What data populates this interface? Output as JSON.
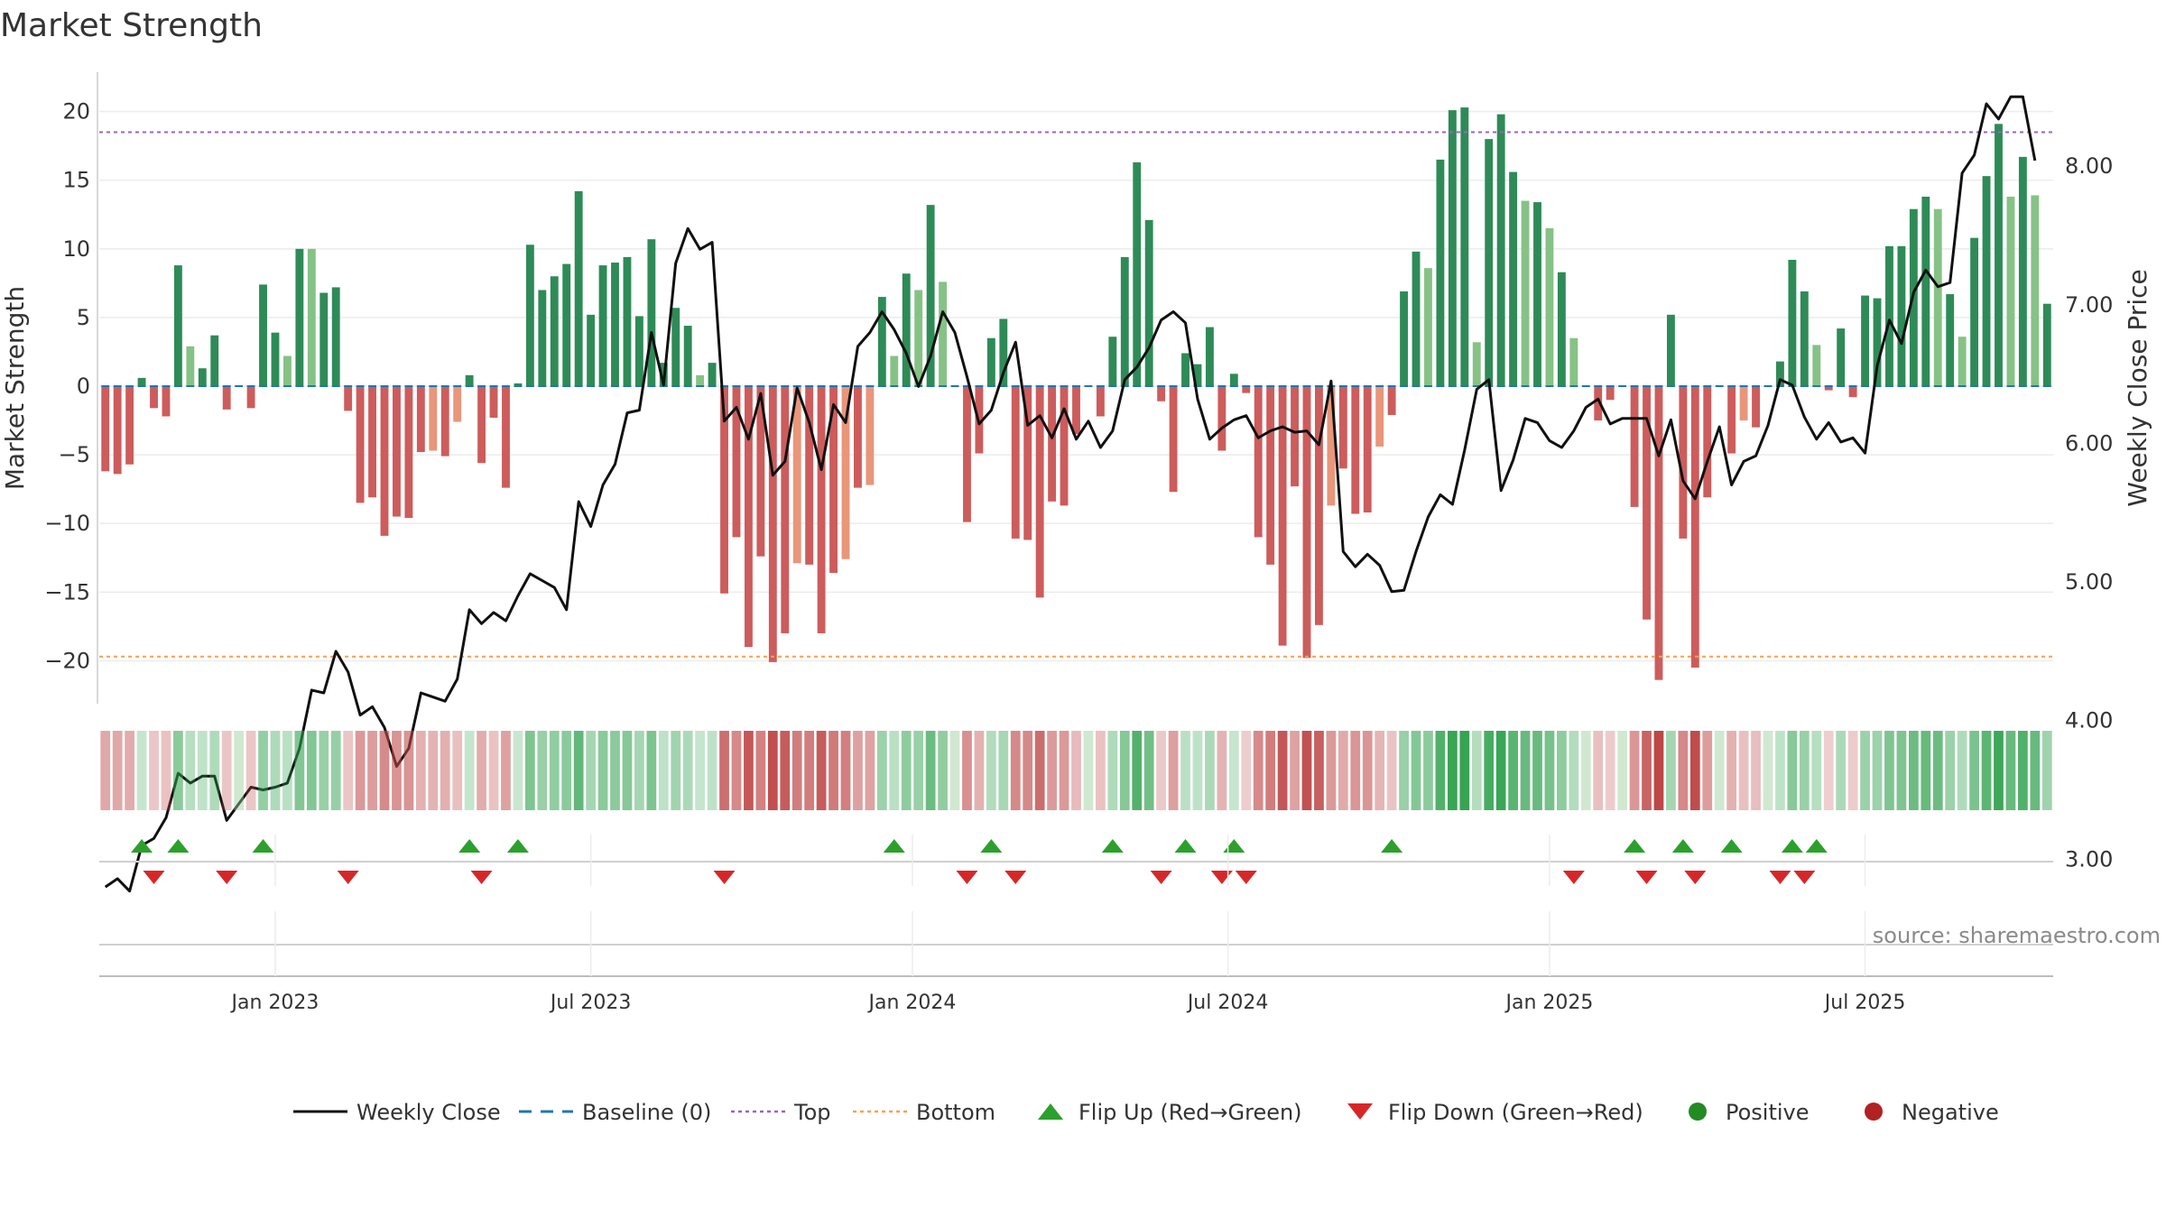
{
  "chart_data": {
    "type": "bar",
    "title": "Market Strength",
    "ylabel_left": "Market Strength",
    "ylabel_right": "Weekly Close Price",
    "left_ylim": [
      -23,
      23
    ],
    "right_ylim": [
      2.0,
      8.45
    ],
    "left_ticks": [
      20,
      15,
      10,
      5,
      0,
      -5,
      -10,
      -15,
      -20
    ],
    "left_tick_labels": [
      "20",
      "15",
      "10",
      "5",
      "0",
      "−5",
      "−10",
      "−15",
      "−20"
    ],
    "right_ticks": [
      8,
      7,
      6,
      5,
      4,
      3
    ],
    "right_tick_labels": [
      "8.00",
      "7.00",
      "6.00",
      "5.00",
      "4.00",
      "3.00"
    ],
    "top_level": 18.5,
    "bottom_level": -19.7,
    "baseline": 0,
    "date_ticks": [
      {
        "label": "Jan 2023",
        "week": 14
      },
      {
        "label": "Jul 2023",
        "week": 40
      },
      {
        "label": "Jan 2024",
        "week": 66.5
      },
      {
        "label": "Jul 2024",
        "week": 92.5
      },
      {
        "label": "Jan 2025",
        "week": 119
      },
      {
        "label": "Jul 2025",
        "week": 145
      }
    ],
    "bars": [
      -6.2,
      -6.4,
      -5.7,
      0.6,
      -1.6,
      -2.2,
      8.8,
      2.9,
      1.3,
      3.7,
      -1.7,
      0,
      -1.6,
      7.4,
      3.9,
      2.2,
      10,
      10,
      6.8,
      7.2,
      -1.8,
      -8.5,
      -8.1,
      -10.9,
      -9.5,
      -9.6,
      -4.8,
      -4.7,
      -5.1,
      -2.6,
      0.8,
      -5.6,
      -2.3,
      -7.4,
      0.2,
      10.3,
      7,
      8,
      8.9,
      14.2,
      5.2,
      8.8,
      9,
      9.4,
      5.1,
      10.7,
      1.7,
      5.7,
      4.4,
      0.8,
      1.7,
      -15.1,
      -11,
      -19,
      -12.4,
      -20.1,
      -18,
      -12.9,
      -13,
      -18,
      -13.6,
      -12.6,
      -7.4,
      -7.2,
      6.5,
      2.2,
      8.2,
      7,
      13.2,
      7.6,
      0,
      -9.9,
      -4.9,
      3.5,
      4.9,
      -11.1,
      -11.2,
      -15.4,
      -8.4,
      -8.7,
      -3.5,
      0,
      -2.2,
      3.6,
      9.4,
      16.3,
      12.1,
      -1.1,
      -7.7,
      2.4,
      1.6,
      4.3,
      -4.7,
      0.9,
      -0.5,
      -11,
      -13,
      -18.9,
      -7.3,
      -19.8,
      -17.4,
      -8.7,
      -6,
      -9.3,
      -9.2,
      -4.4,
      -2.1,
      6.9,
      9.8,
      8.6,
      16.5,
      20.1,
      20.3,
      3.2,
      18,
      19.8,
      15.6,
      13.5,
      13.4,
      11.5,
      8.3,
      3.5,
      0,
      -2.5,
      -1,
      0,
      -8.8,
      -17,
      -21.4,
      5.2,
      -11.1,
      -20.5,
      -8.1,
      0,
      -4.9,
      -2.5,
      -3,
      0,
      1.8,
      9.2,
      6.9,
      3,
      -0.3,
      4.2,
      -0.8,
      6.6,
      6.4,
      10.2,
      10.2,
      12.9,
      13.8,
      12.9,
      6.7,
      3.6,
      10.8,
      15.3,
      19.1,
      13.8,
      16.7,
      13.9,
      6
    ],
    "weekly_close": [
      2.8,
      2.86,
      2.77,
      3.1,
      3.15,
      3.3,
      3.62,
      3.55,
      3.6,
      3.6,
      3.28,
      3.4,
      3.52,
      3.5,
      3.52,
      3.55,
      3.8,
      4.22,
      4.2,
      4.5,
      4.35,
      4.04,
      4.1,
      3.95,
      3.67,
      3.8,
      4.2,
      4.17,
      4.14,
      4.3,
      4.8,
      4.7,
      4.78,
      4.72,
      4.9,
      5.06,
      5.01,
      4.96,
      4.8,
      5.58,
      5.4,
      5.7,
      5.85,
      6.22,
      6.24,
      6.8,
      6.42,
      7.3,
      7.55,
      7.4,
      7.45,
      6.16,
      6.26,
      6.03,
      6.36,
      5.77,
      5.87,
      6.4,
      6.15,
      5.81,
      6.28,
      6.15,
      6.7,
      6.8,
      6.95,
      6.82,
      6.65,
      6.41,
      6.63,
      6.95,
      6.8,
      6.48,
      6.14,
      6.24,
      6.51,
      6.73,
      6.13,
      6.2,
      6.04,
      6.25,
      6.03,
      6.16,
      5.97,
      6.09,
      6.46,
      6.55,
      6.69,
      6.89,
      6.95,
      6.87,
      6.32,
      6.03,
      6.11,
      6.17,
      6.2,
      6.04,
      6.09,
      6.12,
      6.08,
      6.09,
      5.99,
      6.45,
      5.22,
      5.11,
      5.2,
      5.12,
      4.93,
      4.94,
      5.22,
      5.47,
      5.63,
      5.56,
      5.95,
      6.39,
      6.46,
      5.66,
      5.88,
      6.18,
      6.15,
      6.02,
      5.97,
      6.09,
      6.26,
      6.32,
      6.14,
      6.18,
      6.18,
      6.18,
      5.91,
      6.17,
      5.73,
      5.6,
      5.87,
      6.12,
      5.7,
      5.87,
      5.91,
      6.13,
      6.46,
      6.42,
      6.19,
      6.03,
      6.15,
      6.01,
      6.04,
      5.93,
      6.56,
      6.89,
      6.72,
      7.09,
      7.25,
      7.13,
      7.16,
      7.95,
      8.08,
      8.45,
      8.34,
      8.5,
      8.5,
      8.04
    ],
    "flip_up_weeks": [
      3,
      6,
      13,
      30,
      34,
      65,
      73,
      83,
      89,
      93,
      106,
      126,
      130,
      134,
      139,
      141
    ],
    "flip_down_weeks": [
      4,
      10,
      20,
      31,
      51,
      71,
      75,
      87,
      92,
      94,
      121,
      127,
      131,
      138,
      140
    ],
    "source": "source: sharemaestro.com",
    "legend": [
      {
        "label": "Weekly Close",
        "symbol": "line-solid",
        "color": "#111111"
      },
      {
        "label": "Baseline (0)",
        "symbol": "line-dashed",
        "color": "#1f77b4"
      },
      {
        "label": "Top",
        "symbol": "line-dotted",
        "color": "#9467bd"
      },
      {
        "label": "Bottom",
        "symbol": "line-dotted",
        "color": "#ff9f4a"
      },
      {
        "label": "Flip Up (Red→Green)",
        "symbol": "triangle-up",
        "color": "#2ca02c"
      },
      {
        "label": "Flip Down (Green→Red)",
        "symbol": "triangle-down",
        "color": "#d62728"
      },
      {
        "label": "Positive",
        "symbol": "circle",
        "color": "#228b22"
      },
      {
        "label": "Negative",
        "symbol": "circle",
        "color": "#b22222"
      }
    ],
    "colors": {
      "pos_dark": "#2e8b57",
      "pos_light": "#86c286",
      "neg_dark": "#cd5c5c",
      "neg_light": "#e9967a",
      "grid": "#ececec",
      "axis": "#cccccc"
    }
  }
}
